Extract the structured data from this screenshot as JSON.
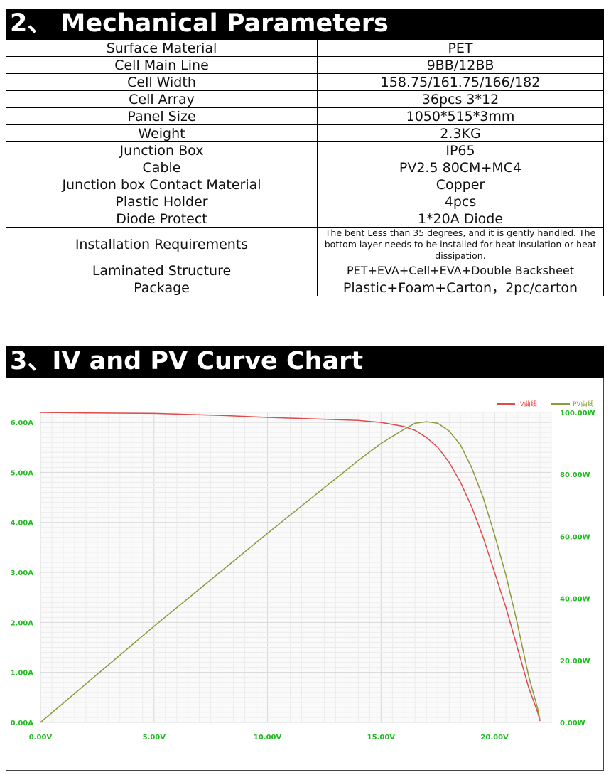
{
  "section2": {
    "title": "2、 Mechanical Parameters",
    "rows": [
      {
        "label": "Surface Material",
        "value": "PET"
      },
      {
        "label": "Cell Main Line",
        "value": "9BB/12BB"
      },
      {
        "label": "Cell Width",
        "value": "158.75/161.75/166/182"
      },
      {
        "label": "Cell Array",
        "value": "36pcs 3*12"
      },
      {
        "label": "Panel Size",
        "value": "1050*515*3mm"
      },
      {
        "label": "Weight",
        "value": "2.3KG"
      },
      {
        "label": "Junction Box",
        "value": "IP65"
      },
      {
        "label": "Cable",
        "value": "PV2.5 80CM+MC4"
      },
      {
        "label": "Junction box Contact Material",
        "value": "Copper"
      },
      {
        "label": "Plastic Holder",
        "value": "4pcs"
      },
      {
        "label": "Diode Protect",
        "value": "1*20A Diode"
      },
      {
        "label": "Installation Requirements",
        "value": "The bent Less than 35 degrees, and it is gently handled. The bottom layer needs to be installed for heat insulation or heat dissipation."
      },
      {
        "label": "Laminated Structure",
        "value": "PET+EVA+Cell+EVA+Double Backsheet"
      },
      {
        "label": "Package",
        "value": "Plastic+Foam+Carton，2pc/carton"
      }
    ]
  },
  "section3": {
    "title": "3、IV and PV Curve Chart"
  },
  "chart_data": {
    "type": "line",
    "title": "",
    "xlabel": "",
    "ylabel": "",
    "xlim": [
      0,
      22.5
    ],
    "ylim": [
      0,
      6.2
    ],
    "y2lim": [
      0,
      100
    ],
    "x_ticks": [
      "0.00V",
      "5.00V",
      "10.00V",
      "15.00V",
      "20.00V"
    ],
    "x_tick_values": [
      0,
      5,
      10,
      15,
      20
    ],
    "y_ticks": [
      "0.00A",
      "1.00A",
      "2.00A",
      "3.00A",
      "4.00A",
      "5.00A",
      "6.00A"
    ],
    "y_tick_values": [
      0,
      1,
      2,
      3,
      4,
      5,
      6
    ],
    "y2_ticks": [
      "0.00W",
      "20.00W",
      "40.00W",
      "60.00W",
      "80.00W",
      "100.00W"
    ],
    "y2_tick_values": [
      0,
      20,
      40,
      60,
      80,
      100
    ],
    "legend_position": "top-right",
    "grid": true,
    "colors": {
      "iv": "#e04a4a",
      "pv": "#8a9a3a",
      "tick_text": "#22bb22"
    },
    "series": [
      {
        "name": "IV曲线",
        "axis": "left",
        "x": [
          0,
          2,
          5,
          8,
          10,
          12,
          14,
          15,
          16,
          16.5,
          17,
          17.5,
          18,
          18.5,
          19,
          19.5,
          20,
          20.5,
          21,
          21.5,
          21.9,
          22
        ],
        "y": [
          6.2,
          6.19,
          6.18,
          6.14,
          6.1,
          6.07,
          6.04,
          6.0,
          5.92,
          5.84,
          5.7,
          5.5,
          5.2,
          4.8,
          4.3,
          3.7,
          3.0,
          2.3,
          1.5,
          0.7,
          0.2,
          0.03
        ]
      },
      {
        "name": "PV曲线",
        "axis": "right",
        "x": [
          0,
          5,
          10,
          14,
          15,
          16,
          16.5,
          17,
          17.5,
          18,
          18.5,
          19,
          19.5,
          20,
          20.5,
          21,
          21.5,
          21.9,
          22
        ],
        "y": [
          0,
          31,
          61,
          84.5,
          90,
          94.5,
          96.5,
          97.0,
          96.5,
          94.0,
          89.5,
          82.0,
          72.5,
          60.5,
          47.5,
          32.0,
          15.0,
          4.4,
          0.7
        ]
      }
    ]
  }
}
